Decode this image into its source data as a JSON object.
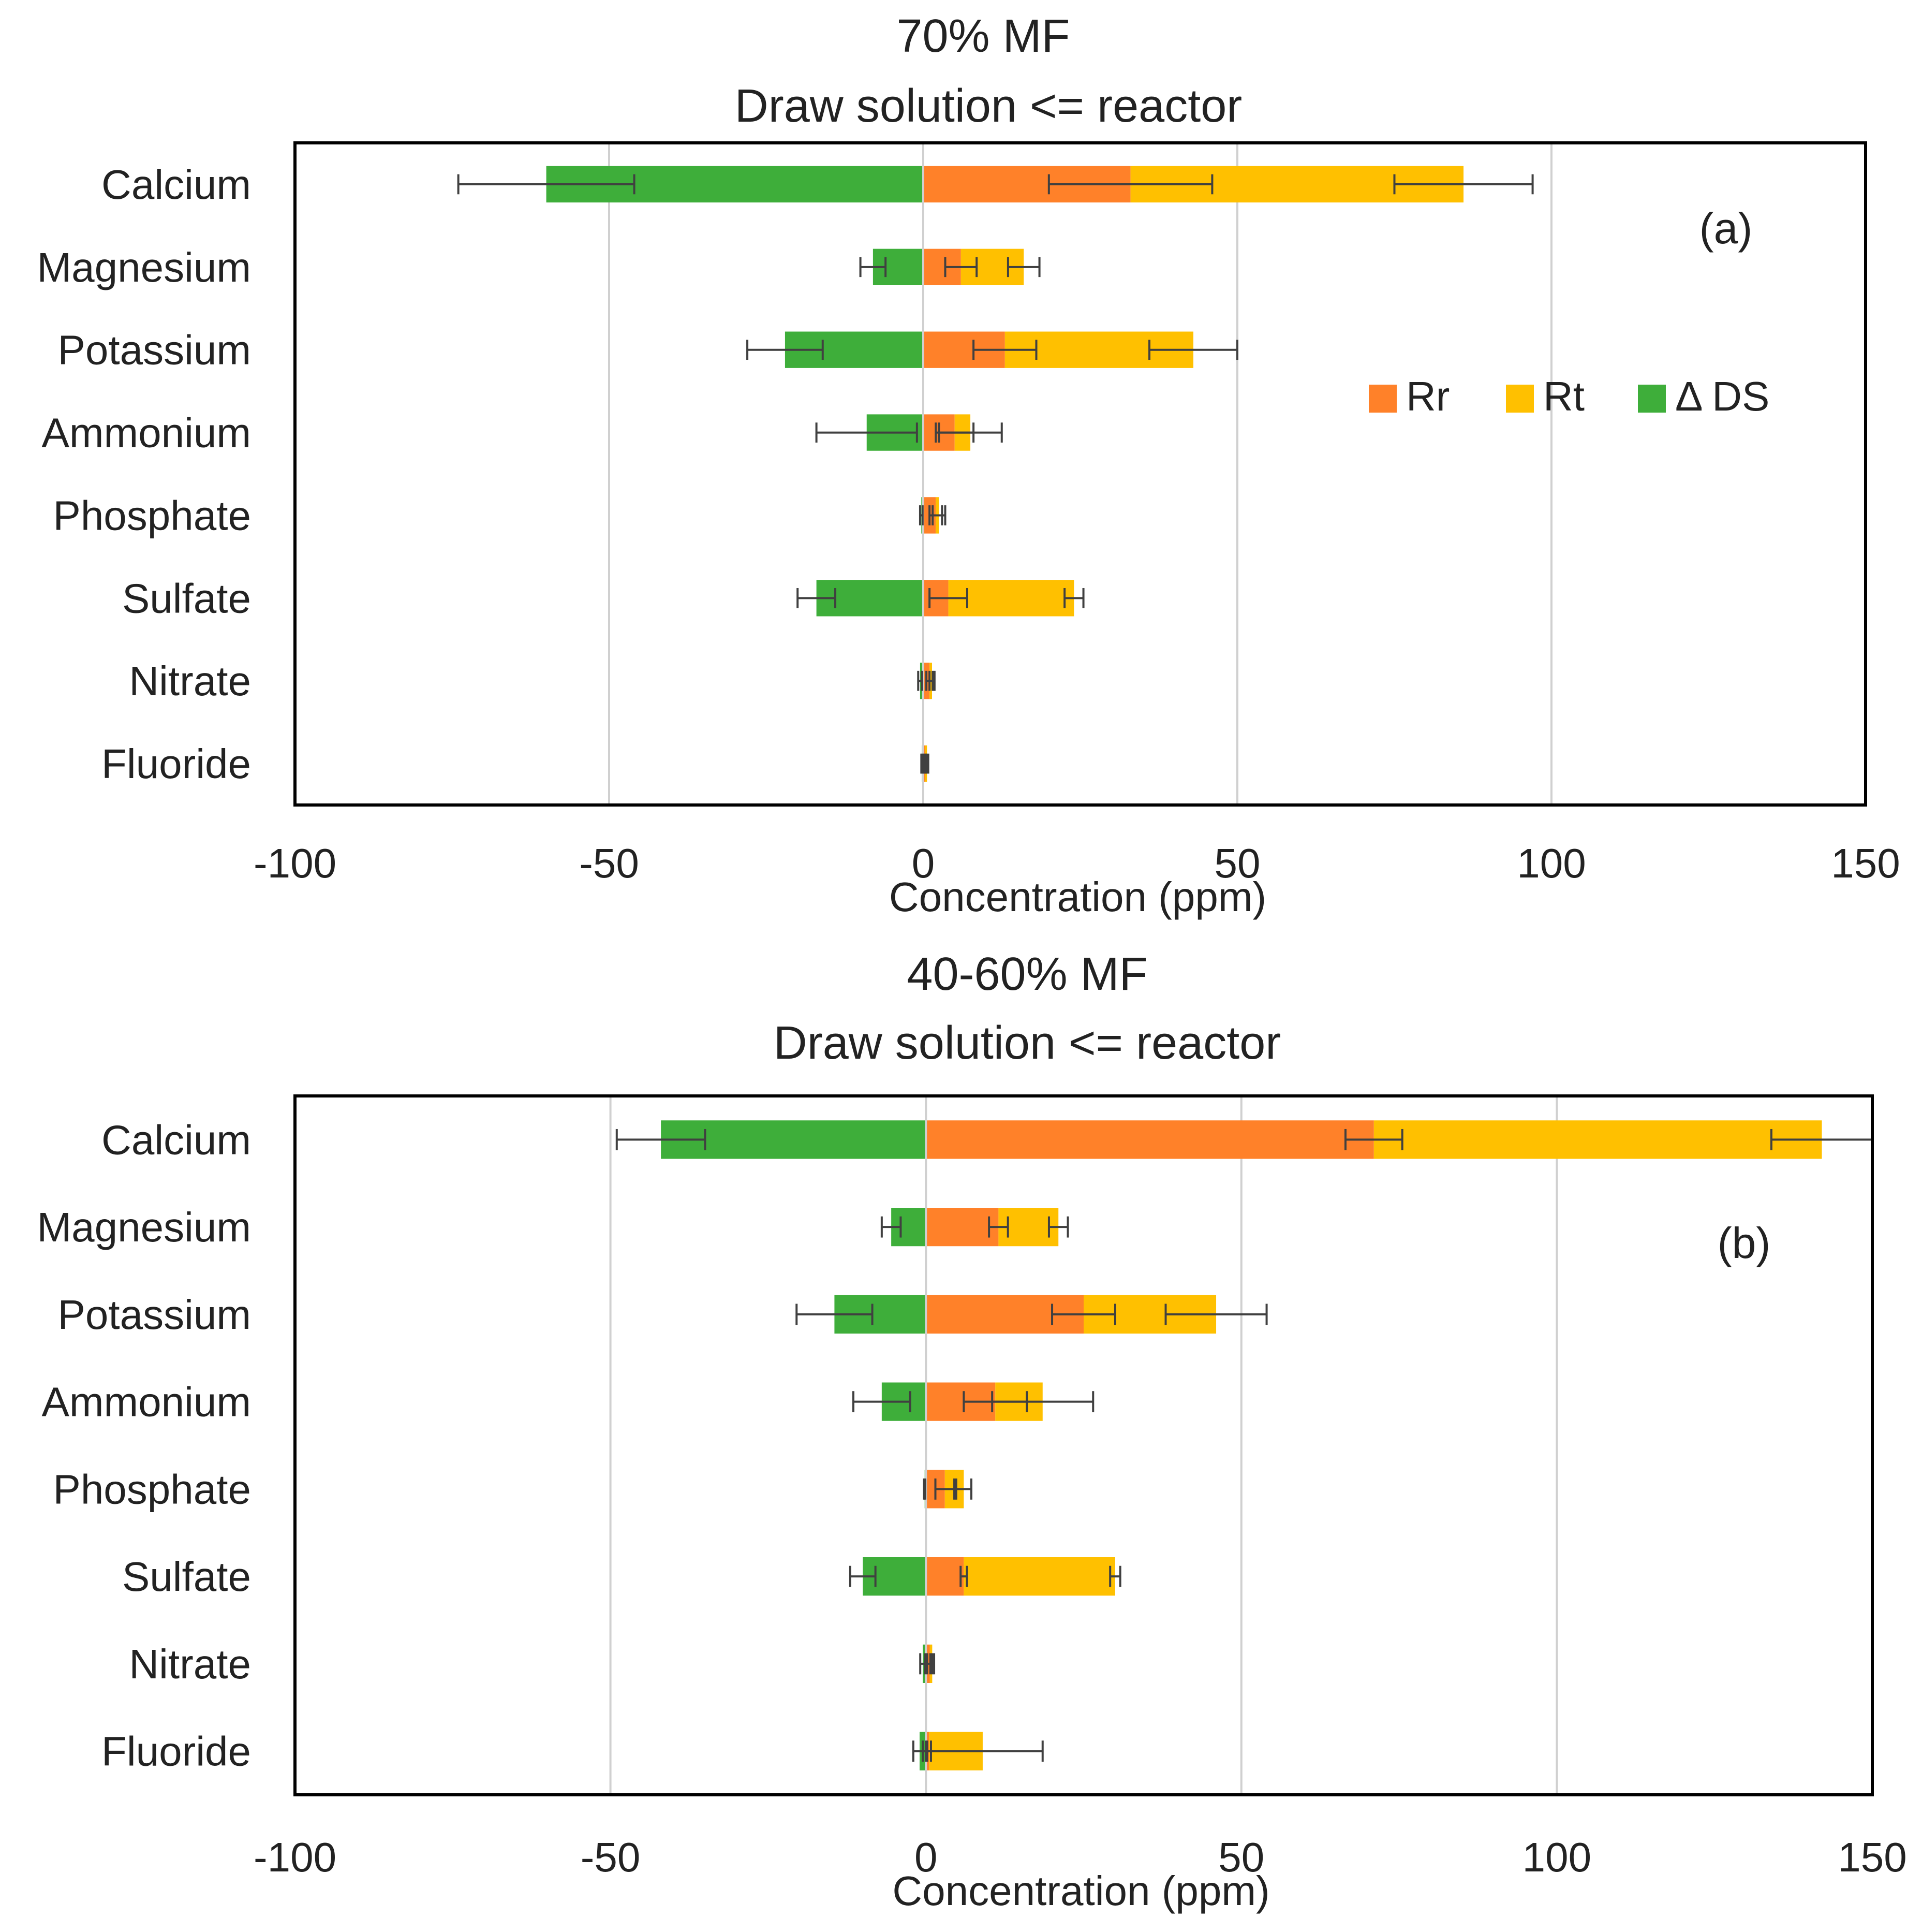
{
  "colors": {
    "Rr": "#FF8129",
    "Rt": "#FFC000",
    "dDS": "#3EAE3A",
    "grid": "#D0D0D0",
    "error_bar": "#404040",
    "frame": "#000000"
  },
  "chart_data": [
    {
      "type": "bar",
      "orientation": "horizontal",
      "stacked": true,
      "title": "70% MF",
      "subtitle": "Draw solution <= reactor",
      "panel_label": "(a)",
      "xlabel": "Concentration (ppm)",
      "ylabel": "",
      "xlim": [
        -100,
        150
      ],
      "xticks": [
        -100,
        -50,
        0,
        50,
        100,
        150
      ],
      "xtick_labels": [
        "-100",
        "-50",
        "0",
        "50",
        "100",
        "150"
      ],
      "grid": true,
      "legend_position": "right",
      "categories": [
        "Calcium",
        "Magnesium",
        "Potassium",
        "Ammonium",
        "Phosphate",
        "Sulfate",
        "Nitrate",
        "Fluoride"
      ],
      "series": [
        {
          "key": "Rr",
          "name": "Rr",
          "values": [
            33,
            6,
            13,
            5,
            2,
            4,
            1,
            0.3
          ],
          "errors": [
            13,
            2.5,
            5,
            3,
            1,
            3,
            0.5,
            0.2
          ]
        },
        {
          "key": "Rt",
          "name": "Rt",
          "values": [
            53,
            10,
            30,
            2.5,
            0.5,
            20,
            0.4,
            0.3
          ],
          "errors": [
            11,
            2.5,
            7,
            5,
            1,
            1.5,
            0.4,
            0.2
          ]
        },
        {
          "key": "dDS",
          "name": "Δ DS",
          "values": [
            -60,
            -8,
            -22,
            -9,
            -0.3,
            -17,
            -0.5,
            -0.2
          ],
          "errors": [
            14,
            2,
            6,
            8,
            0.2,
            3,
            0.3,
            0.1
          ]
        }
      ]
    },
    {
      "type": "bar",
      "orientation": "horizontal",
      "stacked": true,
      "title": "40-60% MF",
      "subtitle": "Draw solution <= reactor",
      "panel_label": "(b)",
      "xlabel": "Concentration (ppm)",
      "ylabel": "",
      "xlim": [
        -100,
        150
      ],
      "xticks": [
        -100,
        -50,
        0,
        50,
        100,
        150
      ],
      "xtick_labels": [
        "-100",
        "-50",
        "0",
        "50",
        "100",
        "150"
      ],
      "grid": true,
      "categories": [
        "Calcium",
        "Magnesium",
        "Potassium",
        "Ammonium",
        "Phosphate",
        "Sulfate",
        "Nitrate",
        "Fluoride"
      ],
      "series": [
        {
          "key": "Rr",
          "name": "Rr",
          "values": [
            71,
            11.5,
            25,
            11,
            3,
            6,
            0.6,
            0.5
          ],
          "errors": [
            4.5,
            1.5,
            5,
            5,
            1.5,
            0.5,
            0.4,
            0.3
          ]
        },
        {
          "key": "Rt",
          "name": "Rt",
          "values": [
            71,
            9.5,
            21,
            7.5,
            3,
            24,
            0.4,
            8.5
          ],
          "errors": [
            8,
            1.5,
            8,
            8,
            1.2,
            0.8,
            0.3,
            9.5
          ]
        },
        {
          "key": "dDS",
          "name": "Δ DS",
          "values": [
            -42,
            -5.5,
            -14.5,
            -7,
            -0.2,
            -10,
            -0.5,
            -1
          ],
          "errors": [
            7,
            1.5,
            6,
            4.5,
            0.1,
            2,
            0.4,
            1
          ]
        }
      ]
    }
  ]
}
